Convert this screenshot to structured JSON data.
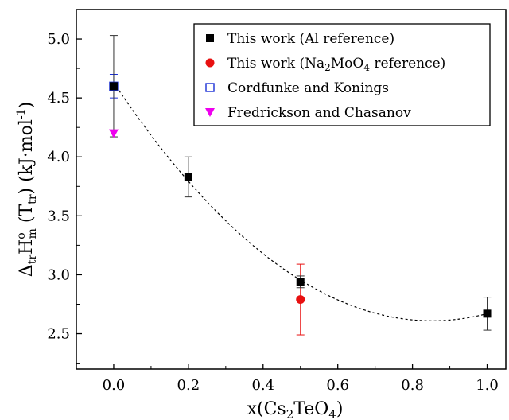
{
  "chart_data": {
    "type": "scatter",
    "xlabel": "x(Cs2TeO4)",
    "ylabel": "ΔtrHom (Ttr) (kJ·mol-1)",
    "xlim": [
      -0.1,
      1.05
    ],
    "ylim": [
      2.2,
      5.25
    ],
    "x_ticks": [
      "0.0",
      "0.2",
      "0.4",
      "0.6",
      "0.8",
      "1.0"
    ],
    "x_tick_values": [
      0.0,
      0.2,
      0.4,
      0.6,
      0.8,
      1.0
    ],
    "y_ticks": [
      "2.5",
      "3.0",
      "3.5",
      "4.0",
      "4.5",
      "5.0"
    ],
    "y_tick_values": [
      2.5,
      3.0,
      3.5,
      4.0,
      4.5,
      5.0
    ],
    "legend_position": "top-right",
    "grid": false,
    "series": [
      {
        "name": "This work (Al reference)",
        "marker": "filled-square",
        "color": "#000000",
        "points": [
          {
            "x": 0.0,
            "y": 4.6,
            "err": 0.43
          },
          {
            "x": 0.2,
            "y": 3.83,
            "err": 0.17
          },
          {
            "x": 0.5,
            "y": 2.94,
            "err": 0.05
          },
          {
            "x": 1.0,
            "y": 2.67,
            "err": 0.14
          }
        ]
      },
      {
        "name": "This work (Na2MoO4 reference)",
        "marker": "filled-circle",
        "color": "#e81010",
        "points": [
          {
            "x": 0.5,
            "y": 2.79,
            "err": 0.3
          }
        ]
      },
      {
        "name": "Cordfunke and Konings",
        "marker": "open-square",
        "color": "#1a2fd6",
        "points": [
          {
            "x": 0.0,
            "y": 4.6,
            "err": 0.1
          }
        ]
      },
      {
        "name": "Fredrickson and Chasanov",
        "marker": "filled-triangle-down",
        "color": "#ee00ee",
        "points": [
          {
            "x": 0.0,
            "y": 4.2,
            "err": 0.0
          }
        ]
      }
    ],
    "fit_curve": {
      "style": "dashed",
      "color": "#000000",
      "x_range": [
        0.0,
        1.0
      ],
      "coefficients": [
        4.63,
        -4.74,
        2.78
      ]
    }
  }
}
